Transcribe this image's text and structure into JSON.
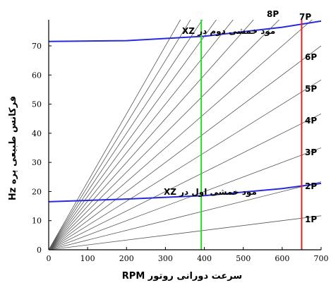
{
  "chart_data": {
    "type": "line",
    "title": "",
    "xlabel": "سرعت دورانی روتور  RPM",
    "ylabel": "فرکانس طبیعی پره  Hz",
    "xlim": [
      0,
      700
    ],
    "ylim": [
      0,
      78
    ],
    "x_ticks": [
      "0",
      "100",
      "200",
      "300",
      "400",
      "500",
      "600",
      "700"
    ],
    "y_ticks": [
      "0",
      "10",
      "20",
      "30",
      "40",
      "50",
      "60",
      "70"
    ],
    "grid": false,
    "order_lines": [
      {
        "name": "1P",
        "order": 1
      },
      {
        "name": "2P",
        "order": 2
      },
      {
        "name": "3P",
        "order": 3
      },
      {
        "name": "4P",
        "order": 4
      },
      {
        "name": "5P",
        "order": 5
      },
      {
        "name": "6P",
        "order": 6
      },
      {
        "name": "7P",
        "order": 7
      },
      {
        "name": "8P",
        "order": 8
      }
    ],
    "unlabeled_order_lines": [
      9,
      10,
      11,
      12,
      13,
      14
    ],
    "series": [
      {
        "name": "مود خمشی اول در XZ",
        "x": [
          0,
          200,
          400,
          600,
          700
        ],
        "y": [
          16.5,
          17.4,
          18.6,
          21.0,
          22.8
        ],
        "color": "#2a2ad8"
      },
      {
        "name": "مود خمشی دوم در XZ",
        "x": [
          0,
          200,
          400,
          600,
          700
        ],
        "y": [
          71.5,
          71.8,
          73.3,
          76.4,
          78.5
        ],
        "color": "#2a2ad8"
      }
    ],
    "vertical_lines": [
      {
        "x": 392,
        "color": "#22dd22"
      },
      {
        "x": 650,
        "color": "#dd2222"
      }
    ]
  }
}
